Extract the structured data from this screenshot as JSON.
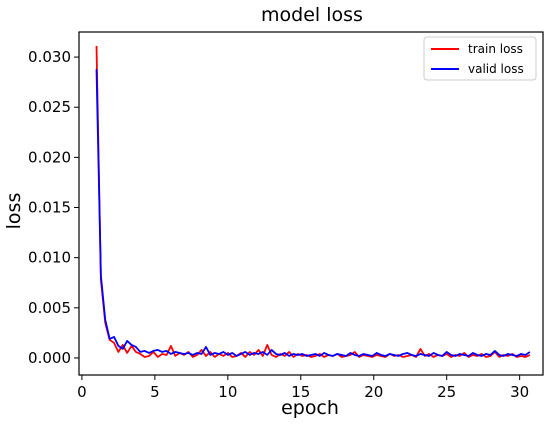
{
  "chart_data": {
    "type": "line",
    "title": "model loss",
    "xlabel": "epoch",
    "ylabel": "loss",
    "xlim": [
      -0.2,
      31.6
    ],
    "ylim": [
      -0.0017,
      0.0325
    ],
    "xticks": [
      0,
      5,
      10,
      15,
      20,
      25,
      30
    ],
    "xtick_labels": [
      "0",
      "5",
      "10",
      "15",
      "20",
      "25",
      "30"
    ],
    "yticks": [
      0.0,
      0.005,
      0.01,
      0.015,
      0.02,
      0.025,
      0.03
    ],
    "ytick_labels": [
      "0.000",
      "0.005",
      "0.010",
      "0.015",
      "0.020",
      "0.025",
      "0.030"
    ],
    "grid": false,
    "legend_position": "top-right",
    "x": [
      1.0,
      1.3,
      1.6,
      1.9,
      2.2,
      2.5,
      2.8,
      3.1,
      3.4,
      3.7,
      4.0,
      4.3,
      4.6,
      4.9,
      5.2,
      5.5,
      5.8,
      6.1,
      6.4,
      6.7,
      7.0,
      7.3,
      7.6,
      7.9,
      8.2,
      8.5,
      8.8,
      9.1,
      9.4,
      9.7,
      10.0,
      10.3,
      10.6,
      10.9,
      11.2,
      11.5,
      11.8,
      12.1,
      12.4,
      12.7,
      13.0,
      13.3,
      13.6,
      13.9,
      14.2,
      14.5,
      14.8,
      15.1,
      15.4,
      15.7,
      16.0,
      16.3,
      16.6,
      16.9,
      17.2,
      17.5,
      17.8,
      18.1,
      18.4,
      18.7,
      19.0,
      19.3,
      19.6,
      19.9,
      20.2,
      20.5,
      20.8,
      21.1,
      21.4,
      21.7,
      22.0,
      22.3,
      22.6,
      22.9,
      23.2,
      23.5,
      23.8,
      24.1,
      24.4,
      24.7,
      25.0,
      25.3,
      25.6,
      25.9,
      26.2,
      26.5,
      26.8,
      27.1,
      27.4,
      27.7,
      28.0,
      28.3,
      28.6,
      28.9,
      29.2,
      29.5,
      29.8,
      30.1,
      30.4,
      30.7
    ],
    "series": [
      {
        "name": "train loss",
        "color": "#ff0000",
        "values": [
          0.0311,
          0.0078,
          0.0035,
          0.0018,
          0.0015,
          0.0006,
          0.0013,
          0.0005,
          0.0012,
          0.0006,
          0.0004,
          0.0001,
          0.0002,
          0.0006,
          0.0001,
          0.0004,
          0.0003,
          0.0012,
          0.0002,
          0.0005,
          0.0003,
          0.0006,
          0.0001,
          0.0003,
          0.0008,
          0.0002,
          0.0006,
          0.0001,
          0.0004,
          0.0002,
          0.0005,
          0.0001,
          0.0002,
          0.0005,
          0.0001,
          0.0006,
          0.0003,
          0.0008,
          0.0002,
          0.0013,
          0.0003,
          0.0001,
          0.0004,
          0.0002,
          0.0006,
          0.0001,
          0.0004,
          0.0002,
          0.0003,
          0.0001,
          0.0002,
          0.0004,
          0.0001,
          0.0003,
          0.0002,
          0.0004,
          0.0001,
          0.0002,
          0.0003,
          0.0006,
          0.0001,
          0.0003,
          0.0002,
          0.0001,
          0.0003,
          0.0002,
          0.0001,
          0.0004,
          0.0002,
          0.0003,
          0.0001,
          0.0002,
          0.0003,
          0.0001,
          0.0009,
          0.0002,
          0.0004,
          0.0001,
          0.0003,
          0.0002,
          0.0004,
          0.0001,
          0.0003,
          0.0002,
          0.0005,
          0.0001,
          0.0003,
          0.0002,
          0.0004,
          0.0001,
          0.0002,
          0.0006,
          0.0001,
          0.0003,
          0.0002,
          0.0004,
          0.0001,
          0.0002,
          0.0001,
          0.0003
        ]
      },
      {
        "name": "valid loss",
        "color": "#0000ff",
        "values": [
          0.0288,
          0.0082,
          0.0038,
          0.0019,
          0.0021,
          0.0012,
          0.0009,
          0.0017,
          0.0013,
          0.0011,
          0.0006,
          0.0007,
          0.0005,
          0.0007,
          0.0008,
          0.0006,
          0.0007,
          0.0004,
          0.0006,
          0.0005,
          0.0004,
          0.0005,
          0.0003,
          0.0005,
          0.0004,
          0.0011,
          0.0003,
          0.0005,
          0.0004,
          0.0006,
          0.0003,
          0.0005,
          0.0002,
          0.0004,
          0.0006,
          0.0003,
          0.0005,
          0.0004,
          0.0006,
          0.0003,
          0.0008,
          0.0004,
          0.0003,
          0.0005,
          0.0002,
          0.0004,
          0.0003,
          0.0004,
          0.0002,
          0.0003,
          0.0004,
          0.0002,
          0.0005,
          0.0003,
          0.0002,
          0.0004,
          0.0003,
          0.0002,
          0.0005,
          0.0003,
          0.0002,
          0.0004,
          0.0003,
          0.0002,
          0.0005,
          0.0003,
          0.0002,
          0.0004,
          0.0003,
          0.0002,
          0.0004,
          0.0005,
          0.0003,
          0.0002,
          0.0004,
          0.0003,
          0.0002,
          0.0005,
          0.0003,
          0.0002,
          0.0006,
          0.0003,
          0.0002,
          0.0004,
          0.0003,
          0.0002,
          0.0005,
          0.0003,
          0.0002,
          0.0004,
          0.0003,
          0.0007,
          0.0003,
          0.0002,
          0.0004,
          0.0003,
          0.0002,
          0.0004,
          0.0003,
          0.0006
        ]
      }
    ]
  }
}
